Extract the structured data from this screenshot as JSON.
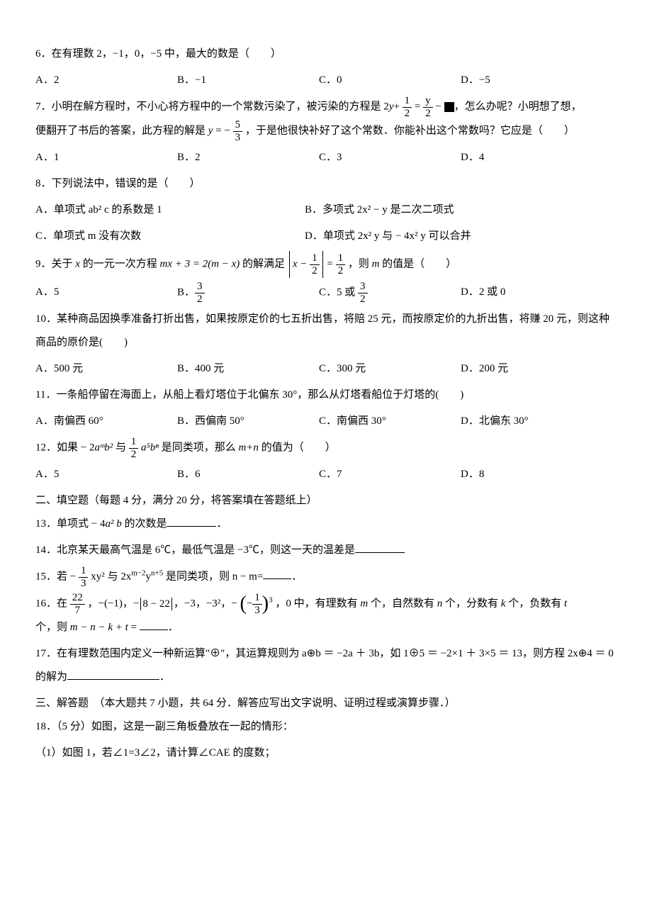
{
  "q6": {
    "text": "6．在有理数 2，−1，0，−5 中，最大的数是（　　）",
    "opts": [
      "A．2",
      "B．−1",
      "C．0",
      "D．−5"
    ]
  },
  "q7": {
    "text_a": "7．小明在解方程时，不小心将方程中的一个常数污染了，被污染的方程是 2",
    "text_b": "+",
    "text_c": " = ",
    "text_d": " − ",
    "text_e": "，怎么办呢？小明想了想，",
    "text_f": "便翻开了书后的答案，此方程的解是 ",
    "text_g": " = − ",
    "text_h": "，于是他很快补好了这个常数．你能补出这个常数吗？它应是（　　）",
    "frac1_num": "1",
    "frac1_den": "2",
    "frac2_num": "y",
    "frac2_den": "2",
    "frac3_num": "5",
    "frac3_den": "3",
    "y_var": "y",
    "opts": [
      "A．1",
      "B．2",
      "C．3",
      "D．4"
    ]
  },
  "q8": {
    "text": "8．下列说法中，错误的是（　　）",
    "opts": [
      "A．单项式 ab² c 的系数是 1",
      "B．多项式 2x² − y 是二次二项式",
      "C．单项式 m 没有次数",
      "D．单项式 2x² y 与 − 4x² y 可以合并"
    ]
  },
  "q9": {
    "text_a": "9．关于 ",
    "text_b": " 的一元一次方程 ",
    "text_c": " 的解满足 ",
    "text_d": "，则 ",
    "text_e": " 的值是（　　）",
    "x_var": "x",
    "m_var": "m",
    "eq": "mx + 3 = 2(m − x)",
    "abs_lhs_a": "x − ",
    "abs_rhs_eq": " = ",
    "frac_half_num": "1",
    "frac_half_den": "2",
    "opts_a": "A．5",
    "opts_b_pre": "B．",
    "opts_c_pre": "C．5 或 ",
    "opts_d": "D．2 或 0",
    "frac32_num": "3",
    "frac32_den": "2"
  },
  "q10": {
    "text": "10．某种商品因换季准备打折出售，如果按原定价的七五折出售，将赔 25 元，而按原定价的九折出售，将赚 20 元，则这种商品的原价是(　　)",
    "opts": [
      "A．500 元",
      "B．400 元",
      "C．300 元",
      "D．200 元"
    ]
  },
  "q11": {
    "text": "11．一条船停留在海面上，从船上看灯塔位于北偏东 30°，那么从灯塔看船位于灯塔的(　　)",
    "opts": [
      "A．南偏西 60°",
      "B．西偏南 50°",
      "C．南偏西 30°",
      "D．北偏东 30°"
    ]
  },
  "q12": {
    "text_a": "12．如果 − 2",
    "text_b": " 与 ",
    "text_c": " 是同类项，那么 ",
    "text_d": " 的值为（　　）",
    "term1": "aᵐb²",
    "term2": "a⁵bⁿ",
    "mn": "m+n",
    "frac_num": "1",
    "frac_den": "2",
    "opts": [
      "A．5",
      "B．6",
      "C．7",
      "D．8"
    ]
  },
  "sec2": "二、填空题（每题 4 分，满分 20 分，将答案填在答题纸上）",
  "q13": {
    "text_a": "13．单项式 − 4",
    "text_b": " 的次数是",
    "text_c": "．",
    "term": "a² b"
  },
  "q14": {
    "text_a": "14．北京某天最高气温是 6℃，最低气温是 −3℃，则这一天的温差是"
  },
  "q15": {
    "text_a": "15．若 − ",
    "text_b": " xy² 与 2x",
    "text_c": "y",
    "text_d": " 是同类项，则 n − m=",
    "text_e": "．",
    "sup1": "m−2",
    "sup2": "n+5",
    "frac_num": "1",
    "frac_den": "3"
  },
  "q16": {
    "text_a": "16．在 ",
    "text_b": "，−(−1)，−",
    "text_c": "，−3，−3²，−",
    "text_d": "，0 中，有理数有 ",
    "text_e": " 个，自然数有 ",
    "text_f": " 个，分数有 ",
    "text_g": " 个，负数有 ",
    "text_h": "个，则 ",
    "text_i": " = ",
    "text_j": "．",
    "frac22_num": "22",
    "frac22_den": "7",
    "abs_inner": "8 − 22",
    "frac13_num": "1",
    "frac13_den": "3",
    "cube": "3",
    "m": "m",
    "n": "n",
    "k": "k",
    "t": "t",
    "expr": "m − n − k + t"
  },
  "q17": {
    "text_a": "17．在有理数范围内定义一种新运算\"⊕\"，其运算规则为 a⊕b ＝ −2a ＋ 3b，如 1⊕5 ＝ −2×1 ＋ 3×5 ＝ 13，则方程 2x⊕4 ＝ 0 的解为",
    "text_b": "．"
  },
  "sec3": "三、解答题　（本大题共 7 小题，共 64 分．解答应写出文字说明、证明过程或演算步骤．）",
  "q18": {
    "text_a": "18．（5 分）如图，这是一副三角板叠放在一起的情形：",
    "text_b": "（1）如图 1，若∠1=3∠2，请计算∠CAE 的度数；"
  }
}
